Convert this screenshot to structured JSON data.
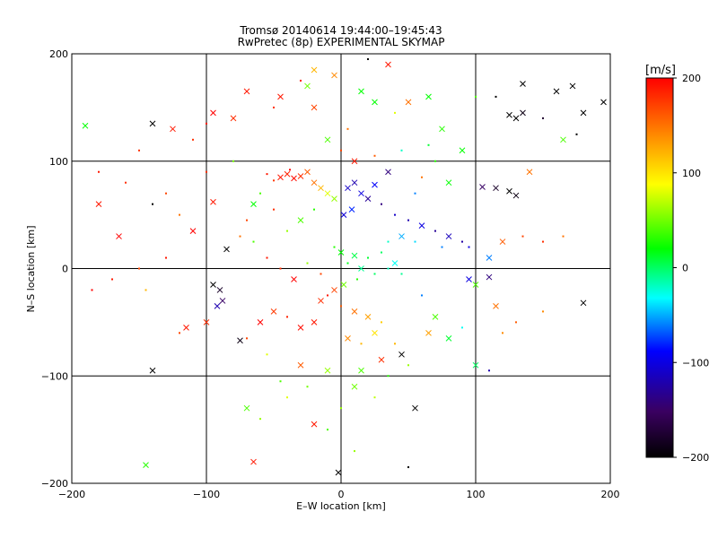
{
  "figure": {
    "title_line1": "Tromsø 20140614 19:44:00–19:45:43",
    "title_line2": "RwPretec (8p) EXPERIMENTAL SKYMAP"
  },
  "chart_data": {
    "type": "scatter",
    "title": "Tromsø 20140614 19:44:00–19:45:43",
    "subtitle": "RwPretec (8p) EXPERIMENTAL SKYMAP",
    "xlabel": "E–W location [km]",
    "ylabel": "N–S location [km]",
    "xlim": [
      -200,
      200
    ],
    "ylim": [
      -200,
      200
    ],
    "xticks": [
      -200,
      -100,
      0,
      100,
      200
    ],
    "yticks": [
      -200,
      -100,
      0,
      100,
      200
    ],
    "grid": true,
    "marker_types": [
      "dot",
      "x"
    ],
    "colorbar": {
      "label": "[m/s]",
      "range": [
        -200,
        200
      ],
      "ticks": [
        200,
        100,
        0,
        -100,
        -200
      ],
      "colors": [
        "#000000",
        "#3a0060",
        "#0000ff",
        "#00ffff",
        "#00ff00",
        "#ffff00",
        "#ff8000",
        "#ff0000"
      ]
    },
    "points": [
      {
        "x": -45,
        "y": 85,
        "v": 190,
        "m": "x"
      },
      {
        "x": -40,
        "y": 88,
        "v": 185,
        "m": "x"
      },
      {
        "x": -35,
        "y": 84,
        "v": 195,
        "m": "x"
      },
      {
        "x": -30,
        "y": 86,
        "v": 180,
        "m": "x"
      },
      {
        "x": -50,
        "y": 82,
        "v": 175,
        "m": "dot"
      },
      {
        "x": -25,
        "y": 90,
        "v": 160,
        "m": "x"
      },
      {
        "x": -55,
        "y": 88,
        "v": 190,
        "m": "dot"
      },
      {
        "x": -20,
        "y": 80,
        "v": 150,
        "m": "x"
      },
      {
        "x": -38,
        "y": 92,
        "v": 200,
        "m": "dot"
      },
      {
        "x": -15,
        "y": 75,
        "v": 120,
        "m": "x"
      },
      {
        "x": -10,
        "y": 70,
        "v": 80,
        "m": "x"
      },
      {
        "x": -5,
        "y": 65,
        "v": 60,
        "m": "x"
      },
      {
        "x": -60,
        "y": 70,
        "v": 40,
        "m": "dot"
      },
      {
        "x": -65,
        "y": 60,
        "v": 20,
        "m": "x"
      },
      {
        "x": -70,
        "y": 45,
        "v": 170,
        "m": "dot"
      },
      {
        "x": -75,
        "y": 30,
        "v": 150,
        "m": "dot"
      },
      {
        "x": 5,
        "y": 75,
        "v": -110,
        "m": "x"
      },
      {
        "x": 10,
        "y": 80,
        "v": -120,
        "m": "x"
      },
      {
        "x": 15,
        "y": 70,
        "v": -100,
        "m": "x"
      },
      {
        "x": 20,
        "y": 65,
        "v": -130,
        "m": "x"
      },
      {
        "x": 25,
        "y": 78,
        "v": -90,
        "m": "x"
      },
      {
        "x": 30,
        "y": 60,
        "v": -140,
        "m": "dot"
      },
      {
        "x": 8,
        "y": 55,
        "v": -80,
        "m": "x"
      },
      {
        "x": 2,
        "y": 50,
        "v": -105,
        "m": "x"
      },
      {
        "x": 40,
        "y": 50,
        "v": -110,
        "m": "dot"
      },
      {
        "x": 50,
        "y": 45,
        "v": -120,
        "m": "dot"
      },
      {
        "x": 60,
        "y": 40,
        "v": -100,
        "m": "x"
      },
      {
        "x": 70,
        "y": 35,
        "v": -130,
        "m": "dot"
      },
      {
        "x": 80,
        "y": 30,
        "v": -115,
        "m": "x"
      },
      {
        "x": 90,
        "y": 25,
        "v": -125,
        "m": "dot"
      },
      {
        "x": 95,
        "y": 20,
        "v": -100,
        "m": "dot"
      },
      {
        "x": 75,
        "y": 20,
        "v": -60,
        "m": "dot"
      },
      {
        "x": 55,
        "y": 25,
        "v": -40,
        "m": "dot"
      },
      {
        "x": 45,
        "y": 30,
        "v": -50,
        "m": "x"
      },
      {
        "x": 35,
        "y": 25,
        "v": -20,
        "m": "dot"
      },
      {
        "x": 30,
        "y": 15,
        "v": 0,
        "m": "dot"
      },
      {
        "x": 20,
        "y": 10,
        "v": 10,
        "m": "dot"
      },
      {
        "x": 10,
        "y": 12,
        "v": 5,
        "m": "x"
      },
      {
        "x": 0,
        "y": 15,
        "v": 20,
        "m": "x"
      },
      {
        "x": -5,
        "y": 20,
        "v": 30,
        "m": "dot"
      },
      {
        "x": 5,
        "y": 5,
        "v": 15,
        "m": "dot"
      },
      {
        "x": 15,
        "y": 0,
        "v": -10,
        "m": "x"
      },
      {
        "x": 25,
        "y": -5,
        "v": 0,
        "m": "dot"
      },
      {
        "x": 35,
        "y": 0,
        "v": -20,
        "m": "dot"
      },
      {
        "x": 40,
        "y": 5,
        "v": -30,
        "m": "x"
      },
      {
        "x": 45,
        "y": -5,
        "v": -10,
        "m": "dot"
      },
      {
        "x": 12,
        "y": -10,
        "v": 30,
        "m": "dot"
      },
      {
        "x": 2,
        "y": -15,
        "v": 50,
        "m": "x"
      },
      {
        "x": -5,
        "y": -20,
        "v": 170,
        "m": "x"
      },
      {
        "x": -10,
        "y": -25,
        "v": 190,
        "m": "dot"
      },
      {
        "x": -15,
        "y": -30,
        "v": 180,
        "m": "x"
      },
      {
        "x": 0,
        "y": -35,
        "v": 160,
        "m": "dot"
      },
      {
        "x": 10,
        "y": -40,
        "v": 150,
        "m": "x"
      },
      {
        "x": 20,
        "y": -45,
        "v": 130,
        "m": "x"
      },
      {
        "x": 30,
        "y": -50,
        "v": 110,
        "m": "dot"
      },
      {
        "x": 25,
        "y": -60,
        "v": 100,
        "m": "x"
      },
      {
        "x": 15,
        "y": -70,
        "v": 120,
        "m": "dot"
      },
      {
        "x": 5,
        "y": -65,
        "v": 140,
        "m": "x"
      },
      {
        "x": -20,
        "y": -50,
        "v": 190,
        "m": "x"
      },
      {
        "x": -30,
        "y": -55,
        "v": 195,
        "m": "x"
      },
      {
        "x": -40,
        "y": -45,
        "v": 185,
        "m": "dot"
      },
      {
        "x": -50,
        "y": -40,
        "v": 175,
        "m": "x"
      },
      {
        "x": -60,
        "y": -50,
        "v": 200,
        "m": "x"
      },
      {
        "x": -70,
        "y": -65,
        "v": 170,
        "m": "dot"
      },
      {
        "x": -75,
        "y": -67,
        "v": -190,
        "m": "x"
      },
      {
        "x": -90,
        "y": -20,
        "v": -180,
        "m": "x"
      },
      {
        "x": -95,
        "y": -15,
        "v": -200,
        "m": "x"
      },
      {
        "x": -88,
        "y": -30,
        "v": -150,
        "m": "x"
      },
      {
        "x": -92,
        "y": -35,
        "v": -120,
        "m": "x"
      },
      {
        "x": -100,
        "y": -50,
        "v": 180,
        "m": "x"
      },
      {
        "x": -115,
        "y": -55,
        "v": 190,
        "m": "x"
      },
      {
        "x": -120,
        "y": -60,
        "v": 170,
        "m": "dot"
      },
      {
        "x": -145,
        "y": -20,
        "v": 120,
        "m": "dot"
      },
      {
        "x": -140,
        "y": -95,
        "v": -200,
        "m": "x"
      },
      {
        "x": -145,
        "y": -183,
        "v": 30,
        "m": "x"
      },
      {
        "x": -65,
        "y": -180,
        "v": 190,
        "m": "x"
      },
      {
        "x": -60,
        "y": -140,
        "v": 60,
        "m": "dot"
      },
      {
        "x": -70,
        "y": -130,
        "v": 40,
        "m": "x"
      },
      {
        "x": -40,
        "y": -120,
        "v": 80,
        "m": "dot"
      },
      {
        "x": -20,
        "y": -145,
        "v": 190,
        "m": "x"
      },
      {
        "x": -10,
        "y": -150,
        "v": 40,
        "m": "dot"
      },
      {
        "x": 0,
        "y": -130,
        "v": 60,
        "m": "dot"
      },
      {
        "x": 10,
        "y": -110,
        "v": 50,
        "m": "x"
      },
      {
        "x": 25,
        "y": -120,
        "v": 70,
        "m": "dot"
      },
      {
        "x": 35,
        "y": -100,
        "v": 30,
        "m": "dot"
      },
      {
        "x": 50,
        "y": -90,
        "v": 60,
        "m": "dot"
      },
      {
        "x": 55,
        "y": -130,
        "v": -200,
        "m": "x"
      },
      {
        "x": 50,
        "y": -185,
        "v": -200,
        "m": "dot"
      },
      {
        "x": -2,
        "y": -190,
        "v": -200,
        "m": "x"
      },
      {
        "x": 10,
        "y": -170,
        "v": 60,
        "m": "dot"
      },
      {
        "x": 100,
        "y": -90,
        "v": 0,
        "m": "x"
      },
      {
        "x": 110,
        "y": -95,
        "v": -120,
        "m": "dot"
      },
      {
        "x": 120,
        "y": -60,
        "v": 140,
        "m": "dot"
      },
      {
        "x": 115,
        "y": -35,
        "v": 150,
        "m": "x"
      },
      {
        "x": 130,
        "y": -50,
        "v": 160,
        "m": "dot"
      },
      {
        "x": 150,
        "y": -40,
        "v": 140,
        "m": "dot"
      },
      {
        "x": 180,
        "y": -32,
        "v": -200,
        "m": "x"
      },
      {
        "x": 95,
        "y": -10,
        "v": -100,
        "m": "x"
      },
      {
        "x": 110,
        "y": -8,
        "v": -140,
        "m": "x"
      },
      {
        "x": 100,
        "y": -15,
        "v": 40,
        "m": "x"
      },
      {
        "x": 120,
        "y": 25,
        "v": 160,
        "m": "x"
      },
      {
        "x": 135,
        "y": 30,
        "v": 170,
        "m": "dot"
      },
      {
        "x": 150,
        "y": 25,
        "v": 180,
        "m": "dot"
      },
      {
        "x": 165,
        "y": 30,
        "v": 150,
        "m": "dot"
      },
      {
        "x": 110,
        "y": 10,
        "v": -60,
        "m": "x"
      },
      {
        "x": 115,
        "y": 75,
        "v": -180,
        "m": "x"
      },
      {
        "x": 125,
        "y": 72,
        "v": -200,
        "m": "x"
      },
      {
        "x": 130,
        "y": 68,
        "v": -190,
        "m": "x"
      },
      {
        "x": 105,
        "y": 76,
        "v": -150,
        "m": "x"
      },
      {
        "x": 140,
        "y": 90,
        "v": 150,
        "m": "x"
      },
      {
        "x": 130,
        "y": 140,
        "v": -200,
        "m": "x"
      },
      {
        "x": 135,
        "y": 145,
        "v": -190,
        "m": "x"
      },
      {
        "x": 125,
        "y": 143,
        "v": -200,
        "m": "x"
      },
      {
        "x": 150,
        "y": 140,
        "v": -180,
        "m": "dot"
      },
      {
        "x": 160,
        "y": 165,
        "v": -200,
        "m": "x"
      },
      {
        "x": 172,
        "y": 170,
        "v": -200,
        "m": "x"
      },
      {
        "x": 180,
        "y": 145,
        "v": -200,
        "m": "x"
      },
      {
        "x": 195,
        "y": 155,
        "v": -200,
        "m": "x"
      },
      {
        "x": 115,
        "y": 160,
        "v": -200,
        "m": "dot"
      },
      {
        "x": 135,
        "y": 172,
        "v": -200,
        "m": "x"
      },
      {
        "x": 165,
        "y": 120,
        "v": 40,
        "m": "x"
      },
      {
        "x": 175,
        "y": 125,
        "v": -200,
        "m": "dot"
      },
      {
        "x": 100,
        "y": 160,
        "v": 40,
        "m": "dot"
      },
      {
        "x": 90,
        "y": 110,
        "v": 20,
        "m": "x"
      },
      {
        "x": 75,
        "y": 130,
        "v": 30,
        "m": "x"
      },
      {
        "x": 65,
        "y": 160,
        "v": 20,
        "m": "x"
      },
      {
        "x": 50,
        "y": 155,
        "v": 150,
        "m": "x"
      },
      {
        "x": 40,
        "y": 145,
        "v": 80,
        "m": "dot"
      },
      {
        "x": 25,
        "y": 155,
        "v": 20,
        "m": "x"
      },
      {
        "x": 15,
        "y": 165,
        "v": 20,
        "m": "x"
      },
      {
        "x": 35,
        "y": 190,
        "v": 190,
        "m": "x"
      },
      {
        "x": 20,
        "y": 195,
        "v": -200,
        "m": "dot"
      },
      {
        "x": -5,
        "y": 180,
        "v": 140,
        "m": "x"
      },
      {
        "x": -20,
        "y": 185,
        "v": 120,
        "m": "x"
      },
      {
        "x": -25,
        "y": 170,
        "v": 50,
        "m": "x"
      },
      {
        "x": -30,
        "y": 175,
        "v": 190,
        "m": "dot"
      },
      {
        "x": -20,
        "y": 150,
        "v": 170,
        "m": "x"
      },
      {
        "x": -45,
        "y": 160,
        "v": 190,
        "m": "x"
      },
      {
        "x": -50,
        "y": 150,
        "v": 180,
        "m": "dot"
      },
      {
        "x": -70,
        "y": 165,
        "v": 190,
        "m": "x"
      },
      {
        "x": -80,
        "y": 140,
        "v": 180,
        "m": "x"
      },
      {
        "x": -95,
        "y": 145,
        "v": 200,
        "m": "x"
      },
      {
        "x": -100,
        "y": 135,
        "v": 190,
        "m": "dot"
      },
      {
        "x": -110,
        "y": 120,
        "v": 180,
        "m": "dot"
      },
      {
        "x": -125,
        "y": 130,
        "v": 190,
        "m": "x"
      },
      {
        "x": -140,
        "y": 135,
        "v": -200,
        "m": "x"
      },
      {
        "x": -190,
        "y": 133,
        "v": 20,
        "m": "x"
      },
      {
        "x": -160,
        "y": 80,
        "v": 180,
        "m": "dot"
      },
      {
        "x": -180,
        "y": 60,
        "v": 190,
        "m": "x"
      },
      {
        "x": -165,
        "y": 30,
        "v": 200,
        "m": "x"
      },
      {
        "x": -140,
        "y": 60,
        "v": -200,
        "m": "dot"
      },
      {
        "x": -130,
        "y": 70,
        "v": 170,
        "m": "dot"
      },
      {
        "x": -110,
        "y": 35,
        "v": 200,
        "m": "x"
      },
      {
        "x": -95,
        "y": 62,
        "v": 190,
        "m": "x"
      },
      {
        "x": -100,
        "y": 90,
        "v": 180,
        "m": "dot"
      },
      {
        "x": -120,
        "y": 50,
        "v": 150,
        "m": "dot"
      },
      {
        "x": -130,
        "y": 10,
        "v": 190,
        "m": "dot"
      },
      {
        "x": -150,
        "y": 0,
        "v": 170,
        "m": "dot"
      },
      {
        "x": -170,
        "y": -10,
        "v": 190,
        "m": "dot"
      },
      {
        "x": -185,
        "y": -20,
        "v": 200,
        "m": "dot"
      },
      {
        "x": -180,
        "y": 90,
        "v": 190,
        "m": "dot"
      },
      {
        "x": -150,
        "y": 110,
        "v": 180,
        "m": "dot"
      },
      {
        "x": -80,
        "y": 100,
        "v": 50,
        "m": "dot"
      },
      {
        "x": -85,
        "y": 18,
        "v": -200,
        "m": "x"
      },
      {
        "x": -55,
        "y": 10,
        "v": 190,
        "m": "dot"
      },
      {
        "x": -45,
        "y": 0,
        "v": 180,
        "m": "dot"
      },
      {
        "x": -35,
        "y": -10,
        "v": 200,
        "m": "x"
      },
      {
        "x": -25,
        "y": 5,
        "v": 60,
        "m": "dot"
      },
      {
        "x": -15,
        "y": -5,
        "v": 170,
        "m": "dot"
      },
      {
        "x": -65,
        "y": 25,
        "v": 40,
        "m": "dot"
      },
      {
        "x": -40,
        "y": 35,
        "v": 60,
        "m": "dot"
      },
      {
        "x": -30,
        "y": 45,
        "v": 40,
        "m": "x"
      },
      {
        "x": -20,
        "y": 55,
        "v": 30,
        "m": "dot"
      },
      {
        "x": -50,
        "y": 55,
        "v": 180,
        "m": "dot"
      },
      {
        "x": 60,
        "y": 85,
        "v": 150,
        "m": "dot"
      },
      {
        "x": 70,
        "y": 100,
        "v": 30,
        "m": "dot"
      },
      {
        "x": 80,
        "y": 80,
        "v": 20,
        "m": "x"
      },
      {
        "x": 65,
        "y": 115,
        "v": 10,
        "m": "dot"
      },
      {
        "x": 45,
        "y": 110,
        "v": -20,
        "m": "dot"
      },
      {
        "x": 55,
        "y": 70,
        "v": -60,
        "m": "dot"
      },
      {
        "x": 35,
        "y": 90,
        "v": -140,
        "m": "x"
      },
      {
        "x": 25,
        "y": 105,
        "v": 160,
        "m": "dot"
      },
      {
        "x": 10,
        "y": 100,
        "v": 190,
        "m": "x"
      },
      {
        "x": 0,
        "y": 110,
        "v": 170,
        "m": "dot"
      },
      {
        "x": -10,
        "y": 120,
        "v": 40,
        "m": "x"
      },
      {
        "x": 5,
        "y": 130,
        "v": 150,
        "m": "dot"
      },
      {
        "x": 60,
        "y": -25,
        "v": -60,
        "m": "dot"
      },
      {
        "x": 70,
        "y": -45,
        "v": 40,
        "m": "x"
      },
      {
        "x": 80,
        "y": -65,
        "v": 10,
        "m": "x"
      },
      {
        "x": 90,
        "y": -55,
        "v": -30,
        "m": "dot"
      },
      {
        "x": 65,
        "y": -60,
        "v": 130,
        "m": "x"
      },
      {
        "x": 40,
        "y": -70,
        "v": 120,
        "m": "dot"
      },
      {
        "x": 45,
        "y": -80,
        "v": -200,
        "m": "x"
      },
      {
        "x": 30,
        "y": -85,
        "v": 180,
        "m": "x"
      },
      {
        "x": -55,
        "y": -80,
        "v": 80,
        "m": "dot"
      },
      {
        "x": -30,
        "y": -90,
        "v": 160,
        "m": "x"
      },
      {
        "x": -45,
        "y": -105,
        "v": 40,
        "m": "dot"
      },
      {
        "x": -10,
        "y": -95,
        "v": 60,
        "m": "x"
      },
      {
        "x": 15,
        "y": -95,
        "v": 40,
        "m": "x"
      },
      {
        "x": -25,
        "y": -110,
        "v": 50,
        "m": "dot"
      }
    ]
  }
}
